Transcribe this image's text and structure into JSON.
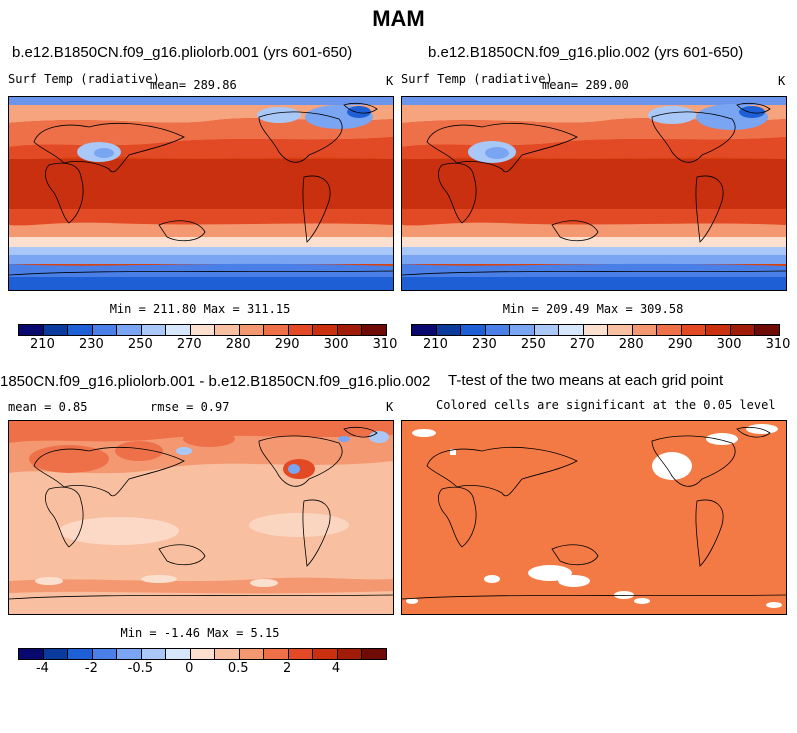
{
  "title": "MAM",
  "panels": [
    {
      "title": "b.e12.B1850CN.f09_g16.pliolorb.001 (yrs 601-650)",
      "variable": "Surf Temp (radiative)",
      "mean": "mean= 289.86",
      "units": "K",
      "minmax": "Min = 211.80 Max = 311.15"
    },
    {
      "title": "b.e12.B1850CN.f09_g16.plio.002 (yrs 601-650)",
      "variable": "Surf Temp (radiative)",
      "mean": "mean= 289.00",
      "units": "K",
      "minmax": "Min = 209.49 Max = 309.58"
    },
    {
      "title": "1850CN.f09_g16.pliolorb.001 - b.e12.B1850CN.f09_g16.plio.002",
      "mean": "mean =    0.85",
      "rmse": "rmse =    0.97",
      "units": "K",
      "minmax": "Min =  -1.46 Max =    5.15"
    },
    {
      "title": "T-test of the two means at each grid point",
      "subtitle": "Colored cells are significant at the 0.05 level"
    }
  ],
  "colorbar_abs": {
    "tick_labels": [
      "210",
      "230",
      "250",
      "270",
      "280",
      "290",
      "300",
      "310"
    ],
    "colors": [
      "#08086e",
      "#0a3a9c",
      "#1f5fd6",
      "#4a7fe8",
      "#79a5f2",
      "#a9c8f7",
      "#d6e6fb",
      "#fbe0cf",
      "#f8bfa0",
      "#f49872",
      "#ee7048",
      "#e24a25",
      "#c8300f",
      "#a01c08",
      "#6e0b04"
    ]
  },
  "colorbar_diff": {
    "tick_labels": [
      "-4",
      "-2",
      "-0.5",
      "0",
      "0.5",
      "2",
      "4"
    ],
    "colors": [
      "#08086e",
      "#0a3a9c",
      "#1f5fd6",
      "#4a7fe8",
      "#79a5f2",
      "#a9c8f7",
      "#d6e6fb",
      "#fbe0cf",
      "#f8bfa0",
      "#f49872",
      "#ee7048",
      "#e24a25",
      "#c8300f",
      "#a01c08",
      "#6e0b04"
    ]
  }
}
